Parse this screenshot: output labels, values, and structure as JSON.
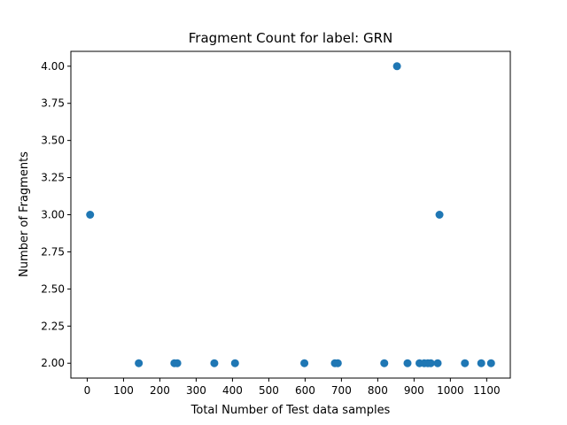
{
  "chart_data": {
    "type": "scatter",
    "title": "Fragment Count for label: GRN",
    "xlabel": "Total Number of Test data samples",
    "ylabel": "Number of Fragments",
    "xlim": [
      -45,
      1165
    ],
    "ylim": [
      1.9,
      4.1
    ],
    "xticks": [
      0,
      100,
      200,
      300,
      400,
      500,
      600,
      700,
      800,
      900,
      1000,
      1100
    ],
    "yticks": [
      "2.00",
      "2.25",
      "2.50",
      "2.75",
      "3.00",
      "3.25",
      "3.50",
      "3.75",
      "4.00"
    ],
    "grid": false,
    "marker_color": "#1f77b4",
    "points": [
      {
        "x": 8,
        "y": 3
      },
      {
        "x": 142,
        "y": 2
      },
      {
        "x": 240,
        "y": 2
      },
      {
        "x": 248,
        "y": 2
      },
      {
        "x": 350,
        "y": 2
      },
      {
        "x": 407,
        "y": 2
      },
      {
        "x": 598,
        "y": 2
      },
      {
        "x": 682,
        "y": 2
      },
      {
        "x": 690,
        "y": 2
      },
      {
        "x": 818,
        "y": 2
      },
      {
        "x": 853,
        "y": 4
      },
      {
        "x": 882,
        "y": 2
      },
      {
        "x": 915,
        "y": 2
      },
      {
        "x": 928,
        "y": 2
      },
      {
        "x": 938,
        "y": 2
      },
      {
        "x": 946,
        "y": 2
      },
      {
        "x": 965,
        "y": 2
      },
      {
        "x": 970,
        "y": 3
      },
      {
        "x": 1040,
        "y": 2
      },
      {
        "x": 1085,
        "y": 2
      },
      {
        "x": 1112,
        "y": 2
      }
    ]
  }
}
